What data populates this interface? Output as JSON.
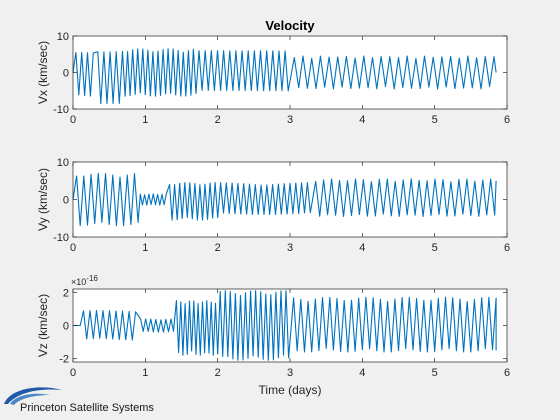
{
  "title": "Velocity",
  "logo_text": "Princeton Satellite Systems",
  "xlabel": "Time (days)",
  "colors": {
    "line": "#0072bd",
    "axes_bg": "#ffffff",
    "figure_bg": "#f0f0f0",
    "axis": "#262626",
    "logo_swoosh": "#1f5aa8"
  },
  "chart_data": [
    {
      "type": "line",
      "ylabel": "Vx (km/sec)",
      "xlim": [
        0,
        6
      ],
      "ylim": [
        -10,
        10
      ],
      "xticks": [
        "0",
        "1",
        "2",
        "3",
        "4",
        "5",
        "6"
      ],
      "yticks": [
        "-10",
        "0",
        "10"
      ],
      "exponent": "",
      "segments": [
        {
          "x_start": 0.0,
          "x_end": 0.3,
          "period_days": 0.08,
          "amp_pos": 5.5,
          "amp_neg": -7.0
        },
        {
          "x_start": 0.3,
          "x_end": 0.65,
          "period_days": 0.085,
          "amp_pos": 6.5,
          "amp_neg": -8.5
        },
        {
          "x_start": 0.65,
          "x_end": 1.7,
          "period_days": 0.07,
          "amp_pos": 6.5,
          "amp_neg": -6.5
        },
        {
          "x_start": 1.7,
          "x_end": 3.0,
          "period_days": 0.085,
          "amp_pos": 6.0,
          "amp_neg": -5.5
        },
        {
          "x_start": 3.0,
          "x_end": 5.85,
          "period_days": 0.12,
          "amp_pos": 4.5,
          "amp_neg": -4.5
        }
      ],
      "end_value": 0.0
    },
    {
      "type": "line",
      "ylabel": "Vy (km/sec)",
      "xlim": [
        0,
        6
      ],
      "ylim": [
        -10,
        10
      ],
      "xticks": [
        "0",
        "1",
        "2",
        "3",
        "4",
        "5",
        "6"
      ],
      "yticks": [
        "-10",
        "0",
        "10"
      ],
      "exponent": "",
      "segments": [
        {
          "x_start": 0.0,
          "x_end": 0.9,
          "period_days": 0.1,
          "amp_pos": 7.0,
          "amp_neg": -7.0
        },
        {
          "x_start": 0.9,
          "x_end": 1.3,
          "period_days": 0.06,
          "amp_pos": 1.5,
          "amp_neg": -1.5
        },
        {
          "x_start": 1.3,
          "x_end": 2.0,
          "period_days": 0.07,
          "amp_pos": 4.5,
          "amp_neg": -5.5
        },
        {
          "x_start": 2.0,
          "x_end": 3.3,
          "period_days": 0.08,
          "amp_pos": 4.5,
          "amp_neg": -4.0
        },
        {
          "x_start": 3.3,
          "x_end": 5.85,
          "period_days": 0.11,
          "amp_pos": 5.5,
          "amp_neg": -4.5
        }
      ],
      "end_value": 5.0
    },
    {
      "type": "line",
      "ylabel": "Vz (km/sec)",
      "xlim": [
        0,
        6
      ],
      "ylim": [
        -2.2,
        2.2
      ],
      "xticks": [
        "0",
        "1",
        "2",
        "3",
        "4",
        "5",
        "6"
      ],
      "yticks": [
        "-2",
        "0",
        "2"
      ],
      "exponent": "×10",
      "exponent_power": "-16",
      "segments": [
        {
          "x_start": 0.0,
          "x_end": 0.1,
          "period_days": 0.1,
          "amp_pos": 0.0,
          "amp_neg": 0.0
        },
        {
          "x_start": 0.1,
          "x_end": 0.9,
          "period_days": 0.09,
          "amp_pos": 0.9,
          "amp_neg": -0.9
        },
        {
          "x_start": 0.9,
          "x_end": 1.4,
          "period_days": 0.07,
          "amp_pos": 0.4,
          "amp_neg": -0.4
        },
        {
          "x_start": 1.4,
          "x_end": 2.0,
          "period_days": 0.06,
          "amp_pos": 1.5,
          "amp_neg": -1.8
        },
        {
          "x_start": 2.0,
          "x_end": 3.0,
          "period_days": 0.07,
          "amp_pos": 2.1,
          "amp_neg": -2.1
        },
        {
          "x_start": 3.0,
          "x_end": 5.85,
          "period_days": 0.1,
          "amp_pos": 1.7,
          "amp_neg": -1.6
        }
      ],
      "end_value": -1.5
    }
  ]
}
